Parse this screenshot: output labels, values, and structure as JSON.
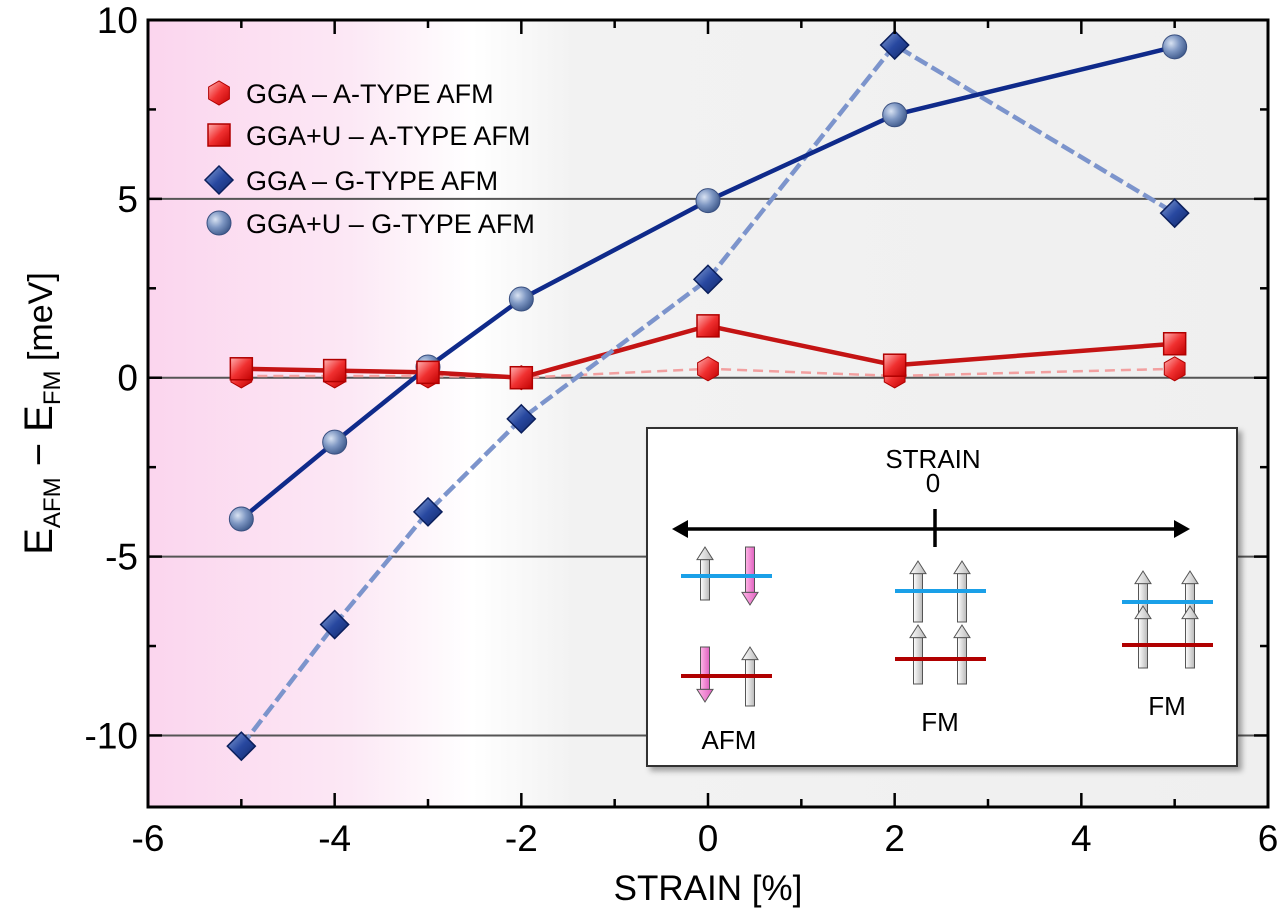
{
  "chart_data": {
    "type": "line",
    "title": "",
    "xlabel": "STRAIN [%]",
    "ylabel": {
      "base": "E",
      "sub1": "AFM",
      "mid": " − E",
      "sub2": "FM",
      "unit": "  [meV]"
    },
    "xlim": [
      -6,
      6
    ],
    "ylim": [
      -12,
      10
    ],
    "xticks": [
      -6,
      -4,
      -2,
      0,
      2,
      4,
      6
    ],
    "yticks": [
      10,
      5,
      0,
      -5,
      -10
    ],
    "grid": "horizontal lines at y = 5, 0, -5, -10",
    "background": {
      "pink_region": "x < -2 (fading)",
      "gray_region": "x > -2"
    },
    "series": [
      {
        "name": "GGA – A-TYPE AFM",
        "marker": "hexagon",
        "color": "#e8141c",
        "line": "dashed-light-red",
        "x": [
          -5,
          -4,
          -3,
          -2,
          0,
          2,
          5
        ],
        "y": [
          0.05,
          0.05,
          0.05,
          0.0,
          0.25,
          0.05,
          0.25
        ]
      },
      {
        "name": "GGA+U – A-TYPE AFM",
        "marker": "square",
        "color": "#e8141c",
        "line": "solid-dark-red",
        "x": [
          -5,
          -4,
          -3,
          -2,
          0,
          2,
          5
        ],
        "y": [
          0.25,
          0.2,
          0.15,
          0.0,
          1.45,
          0.35,
          0.95
        ]
      },
      {
        "name": "GGA – G-TYPE AFM",
        "marker": "diamond",
        "color": "#1e3c96",
        "line": "dashed-light-blue",
        "x": [
          -5,
          -4,
          -3,
          -2,
          0,
          2,
          5
        ],
        "y": [
          -10.3,
          -6.9,
          -3.75,
          -1.15,
          2.75,
          9.3,
          4.6
        ]
      },
      {
        "name": "GGA+U – G-TYPE AFM",
        "marker": "circle",
        "color": "#6b86b3",
        "line": "solid-dark-blue",
        "x": [
          -5,
          -4,
          -3,
          -2,
          0,
          2,
          5
        ],
        "y": [
          -3.95,
          -1.8,
          0.3,
          2.2,
          4.95,
          7.35,
          9.25
        ]
      }
    ],
    "legend_position": "top-left",
    "inset": {
      "title_line1": "STRAIN",
      "title_line2": "0",
      "labels": [
        "AFM",
        "FM",
        "FM"
      ]
    }
  }
}
